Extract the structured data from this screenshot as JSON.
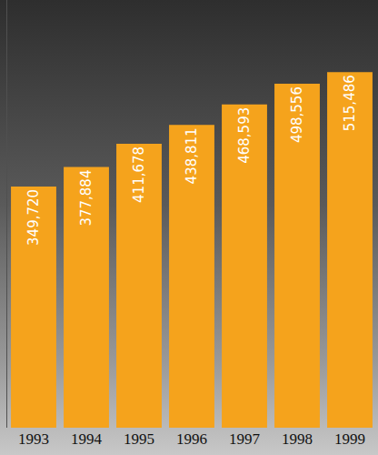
{
  "chart_data": {
    "type": "bar",
    "categories": [
      "1993",
      "1994",
      "1995",
      "1996",
      "1997",
      "1998",
      "1999"
    ],
    "values": [
      349720,
      377884,
      411678,
      438811,
      468593,
      498556,
      515486
    ],
    "value_labels": [
      "349,720",
      "377,884",
      "411,678",
      "438,811",
      "468,593",
      "498,556",
      "515,486"
    ],
    "color": "#f5a31c",
    "ylim": [
      0,
      620000
    ],
    "yticks": [],
    "grid": false,
    "data_labels": true,
    "tick_labels": "x"
  }
}
